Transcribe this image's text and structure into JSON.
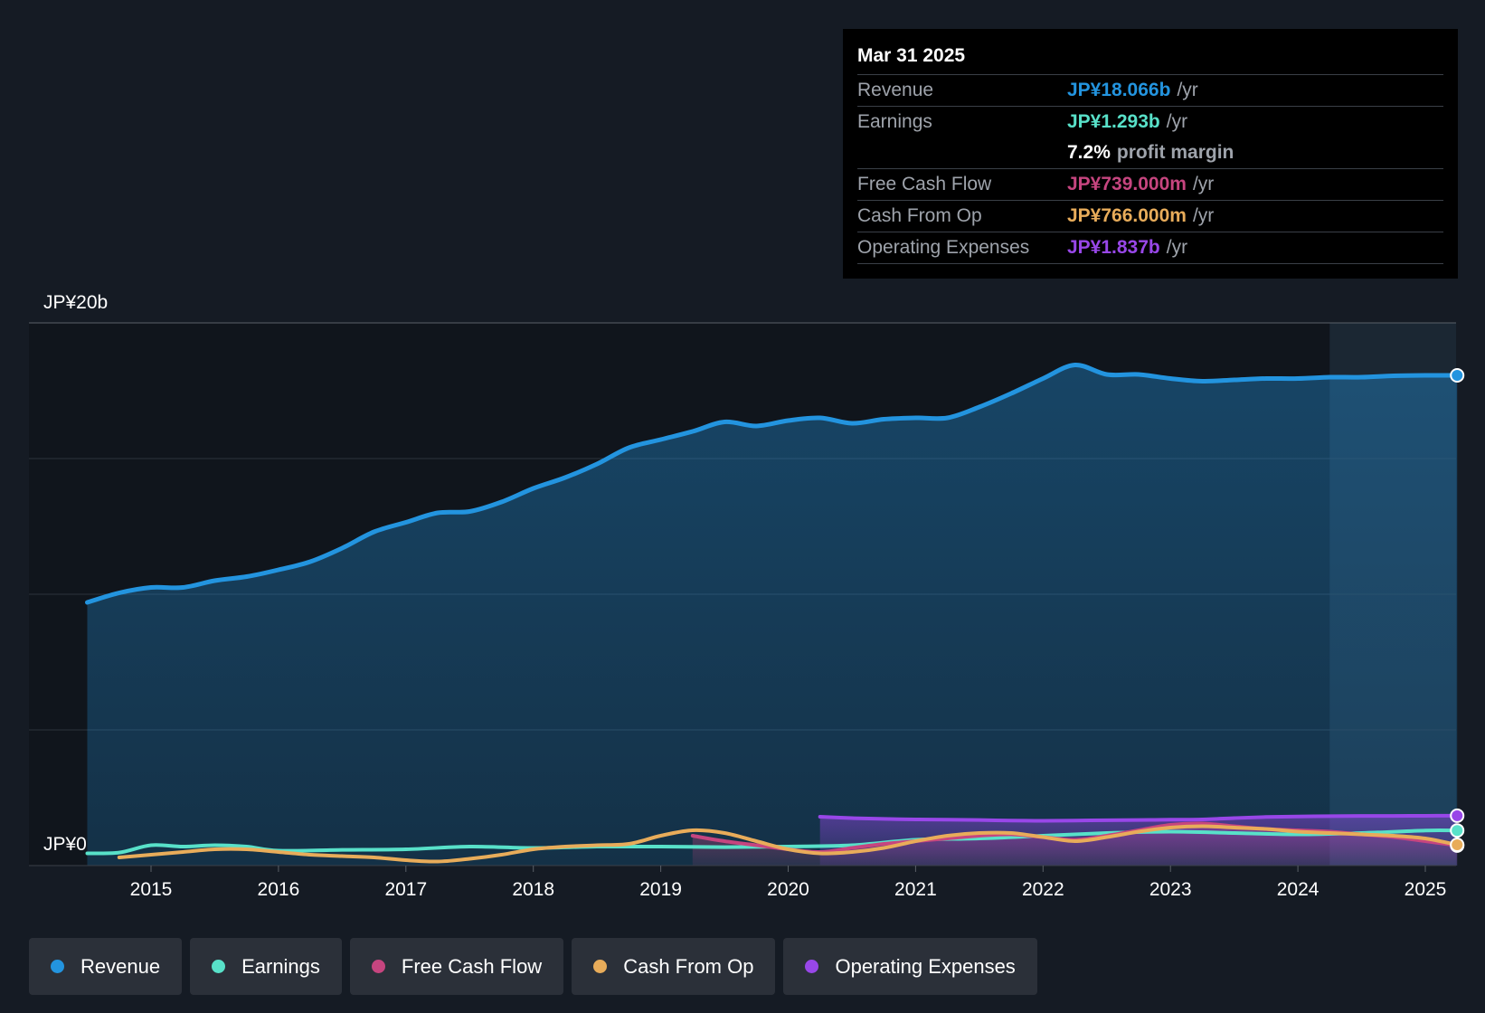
{
  "chart_data": {
    "type": "line",
    "title": "",
    "xlabel": "",
    "ylabel": "",
    "ylim": [
      0,
      20000
    ],
    "y_unit": "JP¥ million",
    "y_axis_labels": [
      "JP¥20b",
      "JP¥0"
    ],
    "x_tick_labels": [
      "2015",
      "2016",
      "2017",
      "2018",
      "2019",
      "2020",
      "2021",
      "2022",
      "2023",
      "2024",
      "2025"
    ],
    "x_tick_values": [
      2015,
      2016,
      2017,
      2018,
      2019,
      2020,
      2021,
      2022,
      2023,
      2024,
      2025
    ],
    "xlim": [
      2014.0,
      2025.25
    ],
    "forecast_start": 2024.25,
    "series": [
      {
        "name": "Revenue",
        "color": "#2394df",
        "area": true,
        "x": [
          2014.5,
          2014.75,
          2015.0,
          2015.25,
          2015.5,
          2015.75,
          2016.0,
          2016.25,
          2016.5,
          2016.75,
          2017.0,
          2017.25,
          2017.5,
          2017.75,
          2018.0,
          2018.25,
          2018.5,
          2018.75,
          2019.0,
          2019.25,
          2019.5,
          2019.75,
          2020.0,
          2020.25,
          2020.5,
          2020.75,
          2021.0,
          2021.25,
          2021.5,
          2021.75,
          2022.0,
          2022.25,
          2022.5,
          2022.75,
          2023.0,
          2023.25,
          2023.5,
          2023.75,
          2024.0,
          2024.25,
          2024.5,
          2024.75,
          2025.0,
          2025.25
        ],
        "values": [
          9700,
          10050,
          10250,
          10250,
          10500,
          10650,
          10900,
          11200,
          11700,
          12300,
          12650,
          13000,
          13050,
          13400,
          13900,
          14300,
          14800,
          15400,
          15700,
          16000,
          16350,
          16200,
          16400,
          16500,
          16300,
          16450,
          16500,
          16500,
          16900,
          17400,
          17950,
          18450,
          18100,
          18100,
          17950,
          17850,
          17900,
          17950,
          17950,
          18000,
          18000,
          18050,
          18066,
          18066
        ]
      },
      {
        "name": "Earnings",
        "color": "#58e1c9",
        "area": false,
        "x": [
          2014.5,
          2014.75,
          2015.0,
          2015.25,
          2015.5,
          2015.75,
          2016.0,
          2016.5,
          2017.0,
          2017.5,
          2018.0,
          2018.5,
          2019.0,
          2019.5,
          2020.0,
          2020.5,
          2021.0,
          2021.5,
          2022.0,
          2022.5,
          2023.0,
          2023.5,
          2024.0,
          2024.5,
          2025.0,
          2025.25
        ],
        "values": [
          450,
          480,
          750,
          700,
          750,
          700,
          550,
          580,
          600,
          700,
          650,
          700,
          700,
          680,
          700,
          750,
          950,
          1000,
          1100,
          1200,
          1250,
          1200,
          1150,
          1200,
          1293,
          1293
        ]
      },
      {
        "name": "Free Cash Flow",
        "color": "#c6457f",
        "area": true,
        "x": [
          2019.25,
          2019.5,
          2019.75,
          2020.0,
          2020.25,
          2020.5,
          2020.75,
          2021.0,
          2021.25,
          2021.5,
          2021.75,
          2022.0,
          2022.25,
          2022.5,
          2022.75,
          2023.0,
          2023.25,
          2023.5,
          2023.75,
          2024.0,
          2024.25,
          2024.5,
          2024.75,
          2025.0,
          2025.25
        ],
        "values": [
          1100,
          900,
          750,
          600,
          500,
          650,
          800,
          900,
          1000,
          1100,
          1150,
          1050,
          950,
          1100,
          1300,
          1500,
          1550,
          1450,
          1350,
          1300,
          1250,
          1150,
          1050,
          900,
          739
        ]
      },
      {
        "name": "Cash From Op",
        "color": "#e8ac5a",
        "area": false,
        "x": [
          2014.75,
          2015.0,
          2015.25,
          2015.5,
          2015.75,
          2016.0,
          2016.25,
          2016.5,
          2016.75,
          2017.0,
          2017.25,
          2017.5,
          2017.75,
          2018.0,
          2018.25,
          2018.5,
          2018.75,
          2019.0,
          2019.25,
          2019.5,
          2019.75,
          2020.0,
          2020.25,
          2020.5,
          2020.75,
          2021.0,
          2021.25,
          2021.5,
          2021.75,
          2022.0,
          2022.25,
          2022.5,
          2022.75,
          2023.0,
          2023.25,
          2023.5,
          2023.75,
          2024.0,
          2024.25,
          2024.5,
          2024.75,
          2025.0,
          2025.25
        ],
        "values": [
          300,
          400,
          500,
          600,
          600,
          500,
          400,
          350,
          300,
          200,
          150,
          250,
          400,
          600,
          700,
          750,
          800,
          1100,
          1300,
          1200,
          900,
          600,
          450,
          500,
          650,
          900,
          1100,
          1200,
          1200,
          1050,
          900,
          1050,
          1250,
          1400,
          1450,
          1400,
          1350,
          1250,
          1200,
          1150,
          1100,
          1000,
          766
        ]
      },
      {
        "name": "Operating Expenses",
        "color": "#9847e8",
        "area": true,
        "x": [
          2020.25,
          2020.5,
          2020.75,
          2021.0,
          2021.25,
          2021.5,
          2021.75,
          2022.0,
          2022.25,
          2022.5,
          2022.75,
          2023.0,
          2023.25,
          2023.5,
          2023.75,
          2024.0,
          2024.25,
          2024.5,
          2024.75,
          2025.0,
          2025.25
        ],
        "values": [
          1800,
          1750,
          1720,
          1700,
          1690,
          1680,
          1660,
          1650,
          1660,
          1670,
          1680,
          1690,
          1700,
          1750,
          1790,
          1810,
          1820,
          1830,
          1830,
          1835,
          1837
        ]
      }
    ]
  },
  "tooltip": {
    "date": "Mar 31 2025",
    "rows": [
      {
        "label": "Revenue",
        "value": "JP¥18.066b",
        "unit": "/yr",
        "color": "#2394df"
      },
      {
        "label": "Earnings",
        "value": "JP¥1.293b",
        "unit": "/yr",
        "color": "#58e1c9"
      },
      {
        "label": "",
        "value": "7.2%",
        "unit": "profit margin",
        "color": "#ffffff"
      },
      {
        "label": "Free Cash Flow",
        "value": "JP¥739.000m",
        "unit": "/yr",
        "color": "#c6457f"
      },
      {
        "label": "Cash From Op",
        "value": "JP¥766.000m",
        "unit": "/yr",
        "color": "#e8ac5a"
      },
      {
        "label": "Operating Expenses",
        "value": "JP¥1.837b",
        "unit": "/yr",
        "color": "#9847e8"
      }
    ]
  },
  "legend": [
    {
      "label": "Revenue",
      "color": "#2394df"
    },
    {
      "label": "Earnings",
      "color": "#58e1c9"
    },
    {
      "label": "Free Cash Flow",
      "color": "#c6457f"
    },
    {
      "label": "Cash From Op",
      "color": "#e8ac5a"
    },
    {
      "label": "Operating Expenses",
      "color": "#9847e8"
    }
  ]
}
